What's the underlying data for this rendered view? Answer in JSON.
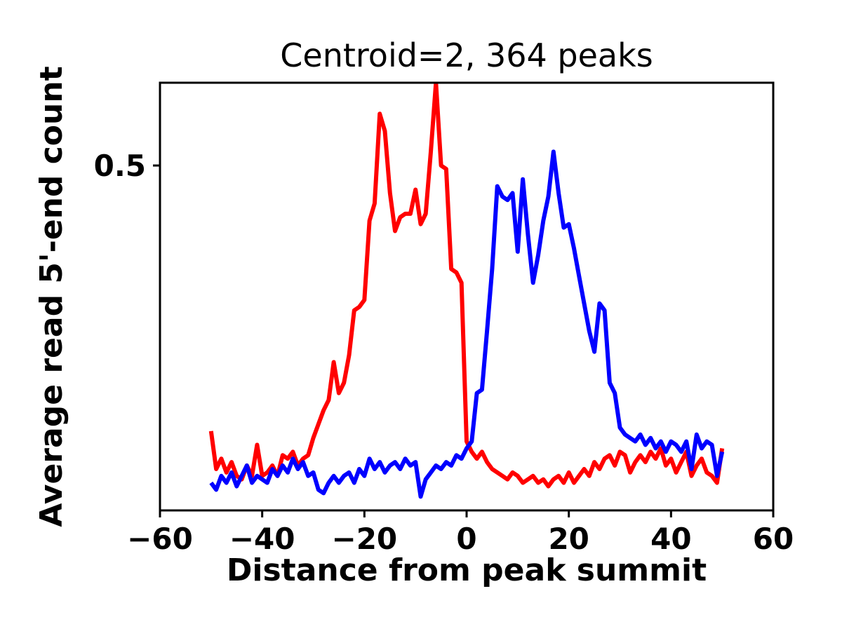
{
  "figure": {
    "title": "Centroid=2, 364 peaks",
    "xlabel": "Distance from peak summit",
    "ylabel": "Average read 5'-end count",
    "y_tick_visible": "0.5"
  },
  "colors": {
    "background": "#ffffff",
    "axes": "#000000",
    "series_red": "#ff0000",
    "series_blue": "#0000ff"
  },
  "chart_data": {
    "type": "line",
    "title": "Centroid=2, 364 peaks",
    "xlabel": "Distance from peak summit",
    "ylabel": "Average read 5'-end count",
    "xlim": [
      -60,
      60
    ],
    "ylim": [
      0,
      0.62
    ],
    "x_ticks": [
      -60,
      -40,
      -20,
      0,
      20,
      40,
      60
    ],
    "x_tick_labels": [
      "−60",
      "−40",
      "−20",
      "0",
      "20",
      "40",
      "60"
    ],
    "y_ticks": [
      0.5
    ],
    "y_tick_labels": [
      "0.5"
    ],
    "grid": false,
    "legend": null,
    "x": [
      -50,
      -49,
      -48,
      -47,
      -46,
      -45,
      -44,
      -43,
      -42,
      -41,
      -40,
      -39,
      -38,
      -37,
      -36,
      -35,
      -34,
      -33,
      -32,
      -31,
      -30,
      -29,
      -28,
      -27,
      -26,
      -25,
      -24,
      -23,
      -22,
      -21,
      -20,
      -19,
      -18,
      -17,
      -16,
      -15,
      -14,
      -13,
      -12,
      -11,
      -10,
      -9,
      -8,
      -7,
      -6,
      -5,
      -4,
      -3,
      -2,
      -1,
      0,
      1,
      2,
      3,
      4,
      5,
      6,
      7,
      8,
      9,
      10,
      11,
      12,
      13,
      14,
      15,
      16,
      17,
      18,
      19,
      20,
      21,
      22,
      23,
      24,
      25,
      26,
      27,
      28,
      29,
      30,
      31,
      32,
      33,
      34,
      35,
      36,
      37,
      38,
      39,
      40,
      41,
      42,
      43,
      44,
      45,
      46,
      47,
      48,
      49,
      50
    ],
    "series": [
      {
        "name": "red",
        "color": "#ff0000",
        "values": [
          0.115,
          0.06,
          0.075,
          0.055,
          0.07,
          0.05,
          0.045,
          0.065,
          0.05,
          0.095,
          0.05,
          0.055,
          0.065,
          0.05,
          0.08,
          0.075,
          0.085,
          0.065,
          0.075,
          0.08,
          0.105,
          0.125,
          0.145,
          0.16,
          0.215,
          0.17,
          0.185,
          0.225,
          0.29,
          0.295,
          0.305,
          0.42,
          0.445,
          0.575,
          0.55,
          0.46,
          0.405,
          0.425,
          0.43,
          0.43,
          0.465,
          0.415,
          0.43,
          0.52,
          0.62,
          0.5,
          0.495,
          0.35,
          0.345,
          0.33,
          0.1,
          0.085,
          0.075,
          0.085,
          0.07,
          0.06,
          0.055,
          0.05,
          0.045,
          0.055,
          0.05,
          0.04,
          0.045,
          0.05,
          0.04,
          0.045,
          0.035,
          0.045,
          0.05,
          0.04,
          0.055,
          0.04,
          0.05,
          0.06,
          0.05,
          0.07,
          0.06,
          0.075,
          0.08,
          0.065,
          0.085,
          0.08,
          0.055,
          0.07,
          0.08,
          0.07,
          0.085,
          0.075,
          0.09,
          0.065,
          0.075,
          0.055,
          0.07,
          0.085,
          0.05,
          0.065,
          0.075,
          0.055,
          0.05,
          0.04,
          0.09
        ]
      },
      {
        "name": "blue",
        "color": "#0000ff",
        "values": [
          0.04,
          0.03,
          0.05,
          0.04,
          0.055,
          0.035,
          0.05,
          0.065,
          0.04,
          0.05,
          0.045,
          0.04,
          0.06,
          0.05,
          0.065,
          0.055,
          0.075,
          0.06,
          0.07,
          0.05,
          0.055,
          0.03,
          0.025,
          0.04,
          0.05,
          0.04,
          0.05,
          0.055,
          0.04,
          0.06,
          0.05,
          0.075,
          0.06,
          0.07,
          0.055,
          0.065,
          0.07,
          0.06,
          0.075,
          0.065,
          0.07,
          0.02,
          0.045,
          0.055,
          0.065,
          0.06,
          0.07,
          0.065,
          0.08,
          0.075,
          0.09,
          0.1,
          0.17,
          0.175,
          0.26,
          0.35,
          0.47,
          0.455,
          0.45,
          0.46,
          0.375,
          0.48,
          0.4,
          0.33,
          0.37,
          0.42,
          0.455,
          0.52,
          0.46,
          0.41,
          0.415,
          0.38,
          0.34,
          0.3,
          0.26,
          0.23,
          0.3,
          0.29,
          0.185,
          0.17,
          0.12,
          0.11,
          0.105,
          0.1,
          0.11,
          0.095,
          0.105,
          0.09,
          0.1,
          0.085,
          0.1,
          0.095,
          0.085,
          0.1,
          0.06,
          0.11,
          0.09,
          0.1,
          0.095,
          0.05,
          0.085
        ]
      }
    ]
  }
}
